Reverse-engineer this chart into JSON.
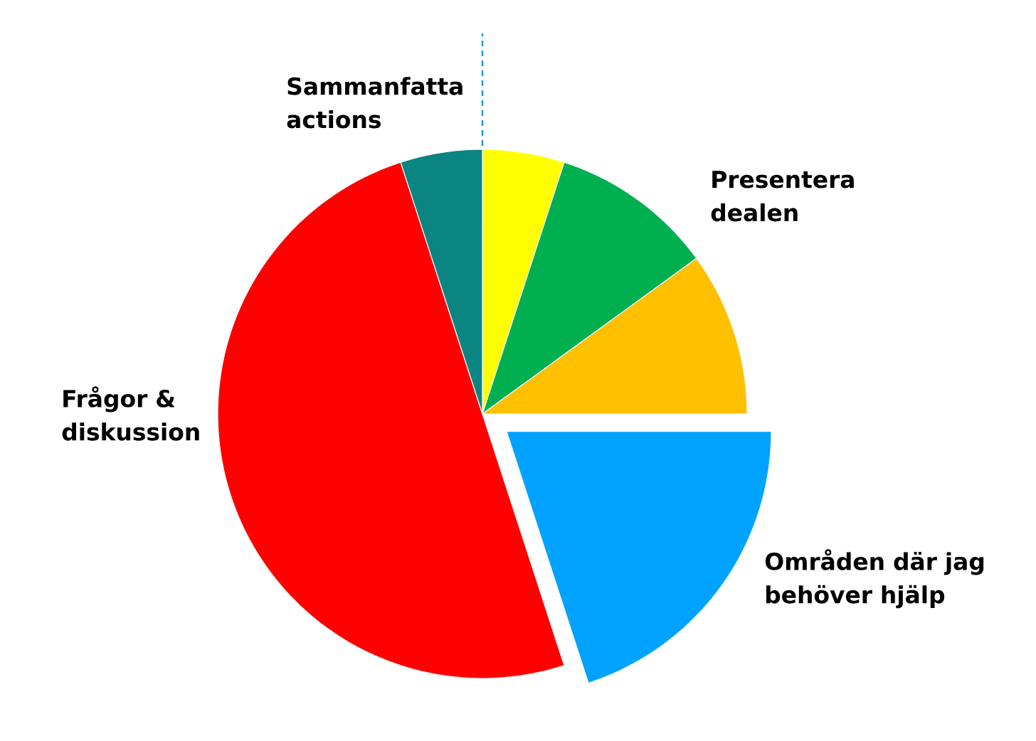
{
  "chart_data": {
    "type": "pie",
    "categories": [
      null,
      "Presentera dealen",
      null,
      "Områden där jag behöver hjälp",
      "Frågor & diskussion",
      "Sammanfatta actions"
    ],
    "values": [
      5,
      10,
      10,
      20,
      50,
      5
    ],
    "colors": [
      "#ffff00",
      "#00b050",
      "#ffc000",
      "#00a2ff",
      "#ff0000",
      "#0b8582"
    ]
  }
}
